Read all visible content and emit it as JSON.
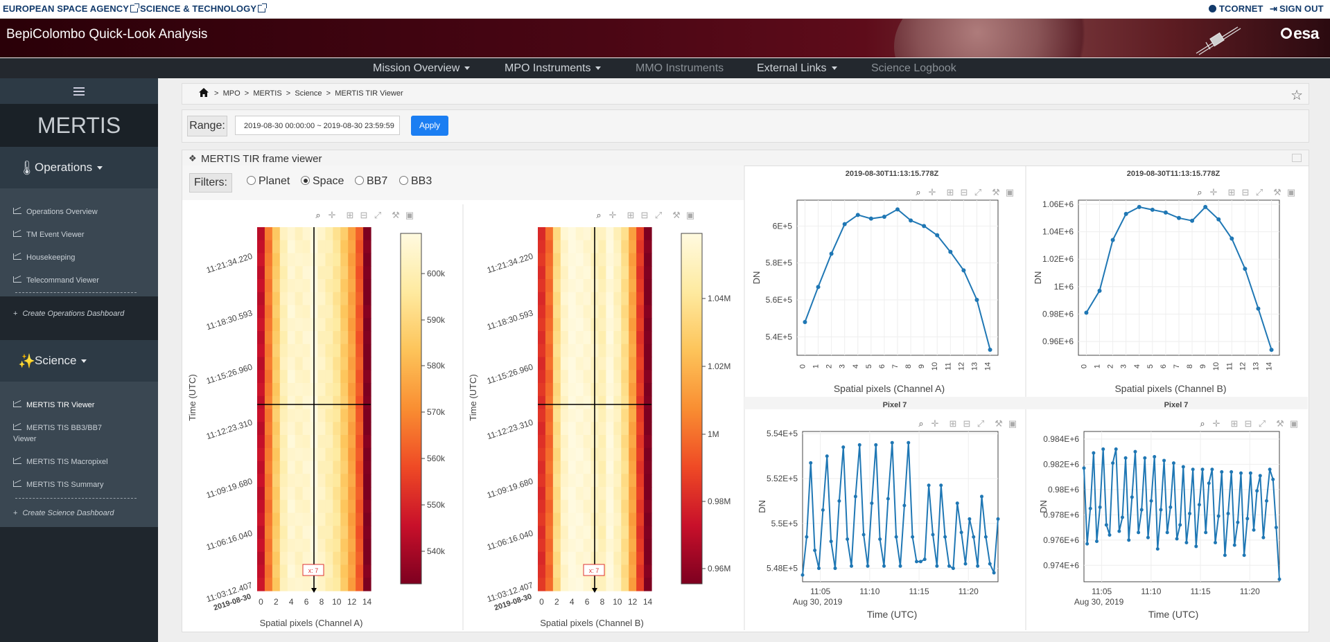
{
  "topbar": {
    "agency": "EUROPEAN SPACE AGENCY",
    "science": "SCIENCE & TECHNOLOGY",
    "user": "TCORNET",
    "signout": "SIGN OUT"
  },
  "banner": {
    "title": "BepiColombo Quick-Look Analysis",
    "logo": "esa"
  },
  "nav": {
    "items": [
      {
        "label": "Mission Overview",
        "dropdown": true
      },
      {
        "label": "MPO Instruments",
        "dropdown": true
      },
      {
        "label": "MMO Instruments",
        "dropdown": false
      },
      {
        "label": "External Links",
        "dropdown": true
      },
      {
        "label": "Science Logbook",
        "dropdown": false
      }
    ]
  },
  "sidebar": {
    "menu_icon": "hamburger-icon",
    "title": "MERTIS",
    "operations": {
      "label": "Operations",
      "items": [
        "Operations Overview",
        "TM Event Viewer",
        "Housekeeping",
        "Telecommand Viewer"
      ],
      "create": "Create Operations Dashboard"
    },
    "science": {
      "label": "Science",
      "items": [
        "MERTIS TIR Viewer",
        "MERTIS TIS BB3/BB7",
        "Viewer",
        "MERTIS TIS Macropixel",
        "MERTIS TIS Summary"
      ],
      "create": "Create Science Dashboard"
    }
  },
  "breadcrumb": {
    "items": [
      "MPO",
      "MERTIS",
      "Science",
      "MERTIS TIR Viewer"
    ],
    "sep": ">"
  },
  "range": {
    "label": "Range:",
    "value": "2019-08-30 00:00:00 ~ 2019-08-30 23:59:59",
    "apply": "Apply"
  },
  "panel": {
    "title": "MERTIS TIR frame viewer"
  },
  "filters": {
    "label": "Filters:",
    "options": [
      "Planet",
      "Space",
      "BB7",
      "BB3"
    ],
    "selected": "Space"
  },
  "chart_data": [
    {
      "type": "heatmap",
      "xlabel": "Spatial pixels (Channel A)",
      "ylabel": "Time (UTC)",
      "x_ticks": [
        0,
        2,
        4,
        6,
        8,
        10,
        12,
        14
      ],
      "y_ticks": [
        "11:03:12.407",
        "11:06:16.040",
        "11:09:19.680",
        "11:12:23.310",
        "11:15:26.960",
        "11:18:30.593",
        "11:21:34.220"
      ],
      "y_date_label": "2019-08-30",
      "colorbar_ticks": [
        "540k",
        "550k",
        "560k",
        "570k",
        "580k",
        "590k",
        "600k"
      ],
      "colorscale": [
        "#7d0020",
        "#c8102a",
        "#ef4a25",
        "#f98e32",
        "#fdc45a",
        "#feeaa0",
        "#fffae0"
      ],
      "profile": [
        545000,
        567000,
        586000,
        601000,
        606000,
        604000,
        605000,
        609000,
        603000,
        600000,
        595000,
        586000,
        576000,
        561000,
        533000
      ],
      "crosshair_x": 7,
      "marker_label": "x: 7"
    },
    {
      "type": "heatmap",
      "xlabel": "Spatial pixels (Channel B)",
      "ylabel": "Time (UTC)",
      "x_ticks": [
        0,
        2,
        4,
        6,
        8,
        10,
        12,
        14
      ],
      "y_ticks": [
        "11:03:12.407",
        "11:06:16.040",
        "11:09:19.680",
        "11:12:23.310",
        "11:15:26.960",
        "11:18:30.593",
        "11:21:34.220"
      ],
      "y_date_label": "2019-08-30",
      "colorbar_ticks": [
        "0.96M",
        "0.98M",
        "1M",
        "1.02M",
        "1.04M"
      ],
      "colorscale": [
        "#7d0020",
        "#c8102a",
        "#ef4a25",
        "#f98e32",
        "#fdc45a",
        "#feeaa0",
        "#fffae0"
      ],
      "profile": [
        981000,
        997000,
        1034000,
        1052000,
        1058000,
        1056000,
        1054000,
        1050000,
        1047000,
        1057000,
        1049000,
        1035000,
        1013000,
        984000,
        954000
      ],
      "crosshair_x": 7,
      "marker_label": "x: 7"
    },
    {
      "type": "line",
      "title": "2019-08-30T11:13:15.778Z",
      "xlabel": "Spatial pixels (Channel A)",
      "ylabel": "DN",
      "x": [
        0,
        1,
        2,
        3,
        4,
        5,
        6,
        7,
        8,
        9,
        10,
        11,
        12,
        13,
        14
      ],
      "y": [
        548000,
        567000,
        585000,
        601000,
        606000,
        604000,
        605000,
        609000,
        603000,
        600000,
        595000,
        586000,
        576000,
        560000,
        533000
      ],
      "y_ticks": [
        540000,
        560000,
        580000,
        600000
      ],
      "y_tick_labels": [
        "5.4E+5",
        "5.6E+5",
        "5.8E+5",
        "6E+5"
      ],
      "xlim": [
        -0.6,
        14.6
      ],
      "ylim": [
        530000,
        614000
      ]
    },
    {
      "type": "line",
      "title": "2019-08-30T11:13:15.778Z",
      "xlabel": "Spatial pixels (Channel B)",
      "ylabel": "DN",
      "x": [
        0,
        1,
        2,
        3,
        4,
        5,
        6,
        7,
        8,
        9,
        10,
        11,
        12,
        13,
        14
      ],
      "y": [
        981000,
        997000,
        1034000,
        1053000,
        1058000,
        1056000,
        1054000,
        1050000,
        1048000,
        1058000,
        1049000,
        1035000,
        1013000,
        984000,
        954000
      ],
      "y_ticks": [
        960000,
        980000,
        1000000,
        1020000,
        1040000,
        1060000
      ],
      "y_tick_labels": [
        "0.96E+6",
        "0.98E+6",
        "1E+6",
        "1.02E+6",
        "1.04E+6",
        "1.06E+6"
      ],
      "xlim": [
        -0.6,
        14.6
      ],
      "ylim": [
        950000,
        1063000
      ]
    },
    {
      "type": "line",
      "title": "Pixel 7",
      "xlabel": "Time (UTC)",
      "ylabel": "DN",
      "x_tick_labels": [
        "11:05",
        "11:10",
        "11:15",
        "11:20"
      ],
      "x_tick_minutes": [
        5,
        10,
        15,
        20
      ],
      "x_date_label": "Aug 30, 2019",
      "x_start_minute": 3.2,
      "x_end_minute": 23.0,
      "y": [
        547700,
        549400,
        552700,
        548800,
        548000,
        550600,
        553000,
        549200,
        548000,
        551000,
        553400,
        549300,
        548100,
        551200,
        553500,
        549500,
        548100,
        550900,
        553500,
        549300,
        548100,
        551100,
        553600,
        549400,
        548100,
        550800,
        553600,
        549400,
        548300,
        548300,
        548400,
        551700,
        549500,
        548100,
        551700,
        549400,
        548100,
        548000,
        550900,
        549600,
        548200,
        550200,
        549400,
        548100,
        551200,
        549400,
        548200,
        547800,
        550200
      ],
      "y_ticks": [
        548000,
        550000,
        552000,
        554000
      ],
      "y_tick_labels": [
        "5.48E+5",
        "5.5E+5",
        "5.52E+5",
        "5.54E+5"
      ],
      "ylim": [
        547400,
        554100
      ]
    },
    {
      "type": "line",
      "title": "Pixel 7",
      "xlabel": "Time (UTC)",
      "ylabel": "DN",
      "x_tick_labels": [
        "11:05",
        "11:10",
        "11:15",
        "11:20"
      ],
      "x_tick_minutes": [
        5,
        10,
        15,
        20
      ],
      "x_date_label": "Aug 30, 2019",
      "x_start_minute": 3.2,
      "x_end_minute": 23.0,
      "y": [
        981700,
        975700,
        978500,
        982900,
        975900,
        978600,
        983200,
        977200,
        976400,
        982100,
        983200,
        976700,
        977800,
        982500,
        976000,
        979400,
        983000,
        976600,
        978400,
        982500,
        976200,
        979100,
        982600,
        975300,
        978400,
        982300,
        976600,
        978600,
        982100,
        976100,
        977200,
        981800,
        975800,
        978100,
        981600,
        975500,
        978800,
        981600,
        976600,
        980500,
        981600,
        975800,
        977900,
        981400,
        974800,
        978100,
        981400,
        975600,
        977400,
        981300,
        974800,
        977700,
        981300,
        976800,
        979900,
        981100,
        976200,
        979100,
        981600,
        980800,
        977000,
        972900
      ],
      "y_ticks": [
        974000,
        976000,
        978000,
        980000,
        982000,
        984000
      ],
      "y_tick_labels": [
        "0.974E+6",
        "0.976E+6",
        "0.978E+6",
        "0.98E+6",
        "0.982E+6",
        "0.984E+6"
      ],
      "ylim": [
        972700,
        984600
      ]
    }
  ]
}
